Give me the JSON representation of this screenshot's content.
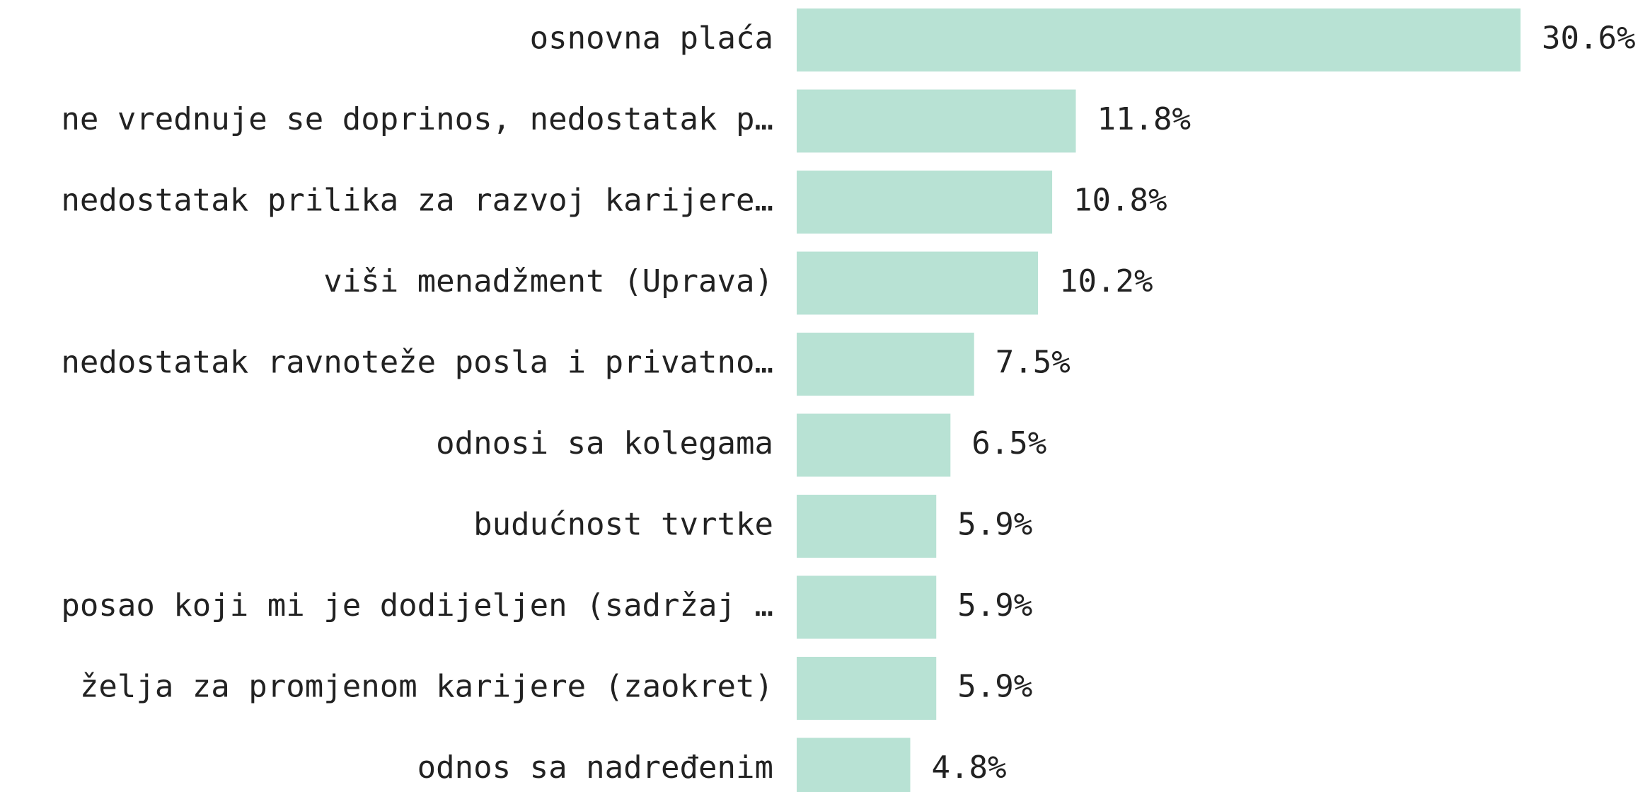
{
  "chart_data": {
    "type": "hbar",
    "categories": [
      "osnovna plaća",
      "ne vrednuje se doprinos, nedostatak p…",
      "nedostatak prilika za razvoj karijere…",
      "viši menadžment (Uprava)",
      "nedostatak ravnoteže posla i privatno…",
      "odnosi sa kolegama",
      "budućnost tvrtke",
      "posao koji mi je dodijeljen (sadržaj …",
      "želja za promjenom karijere (zaokret)",
      "odnos sa nadređenim"
    ],
    "values": [
      30.6,
      11.8,
      10.8,
      10.2,
      7.5,
      6.5,
      5.9,
      5.9,
      5.9,
      4.8
    ],
    "value_labels": [
      "30.6%",
      "11.8%",
      "10.8%",
      "10.2%",
      "7.5%",
      "6.5%",
      "5.9%",
      "5.9%",
      "5.9%",
      "4.8%"
    ],
    "color": "#b8e2d4"
  }
}
